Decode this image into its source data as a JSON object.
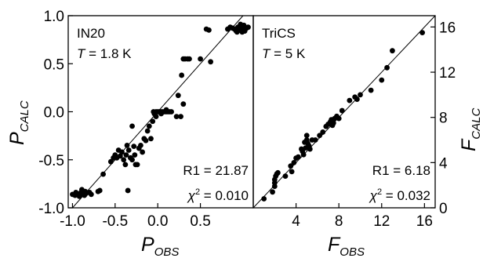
{
  "chart_data": [
    {
      "type": "scatter",
      "panel_label": "IN20",
      "temperature": {
        "symbol": "T",
        "value": " = 1.8 K"
      },
      "fit_stats": {
        "r1": "R1 = 21.87",
        "chi_symbol": "χ",
        "chi_exp": "2",
        "chi_value": " = 0.010"
      },
      "xlabel": {
        "main": "P",
        "sub": "OBS"
      },
      "ylabel": {
        "main": "P",
        "sub": "CALC"
      },
      "xlim": [
        -1.05,
        1.12
      ],
      "ylim": [
        -1.0,
        1.0
      ],
      "xticks": [
        -1.0,
        -0.5,
        0.0,
        0.5
      ],
      "xtick_labels": [
        "-1.0",
        "-0.5",
        "0.0",
        "0.5"
      ],
      "yticks": [
        -1.0,
        -0.5,
        0.0,
        0.5,
        1.0
      ],
      "ytick_labels": [
        "-1.0",
        "-0.5",
        "0.0",
        "0.5",
        "1.0"
      ],
      "reference_line": "y = x",
      "points": [
        [
          -1.0,
          -0.86
        ],
        [
          -0.97,
          -0.87
        ],
        [
          -0.95,
          -0.85
        ],
        [
          -0.93,
          -0.86
        ],
        [
          -0.9,
          -0.84
        ],
        [
          -0.88,
          -0.86
        ],
        [
          -0.86,
          -0.87
        ],
        [
          -0.84,
          -0.85
        ],
        [
          -0.92,
          -0.88
        ],
        [
          -0.96,
          -0.84
        ],
        [
          -0.89,
          -0.81
        ],
        [
          -0.85,
          -0.83
        ],
        [
          -0.8,
          -0.84
        ],
        [
          -0.78,
          -0.86
        ],
        [
          -0.7,
          -0.83
        ],
        [
          -0.68,
          -0.82
        ],
        [
          -0.64,
          -0.65
        ],
        [
          -0.55,
          -0.52
        ],
        [
          -0.52,
          -0.48
        ],
        [
          -0.5,
          -0.45
        ],
        [
          -0.48,
          -0.48
        ],
        [
          -0.46,
          -0.4
        ],
        [
          -0.44,
          -0.46
        ],
        [
          -0.42,
          -0.42
        ],
        [
          -0.4,
          -0.5
        ],
        [
          -0.38,
          -0.55
        ],
        [
          -0.37,
          -0.45
        ],
        [
          -0.36,
          -0.35
        ],
        [
          -0.34,
          -0.4
        ],
        [
          -0.32,
          -0.48
        ],
        [
          -0.3,
          -0.5
        ],
        [
          -0.28,
          -0.36
        ],
        [
          -0.27,
          -0.45
        ],
        [
          -0.26,
          -0.55
        ],
        [
          -0.24,
          -0.55
        ],
        [
          -0.22,
          -0.38
        ],
        [
          -0.2,
          -0.35
        ],
        [
          -0.18,
          -0.42
        ],
        [
          -0.16,
          -0.28
        ],
        [
          -0.14,
          -0.3
        ],
        [
          -0.12,
          -0.2
        ],
        [
          -0.1,
          -0.15
        ],
        [
          -0.08,
          -0.28
        ],
        [
          -0.06,
          -0.1
        ],
        [
          -0.04,
          -0.02
        ],
        [
          -0.02,
          -0.05
        ],
        [
          -0.35,
          -0.82
        ],
        [
          -0.3,
          -0.15
        ],
        [
          -0.05,
          0.0
        ],
        [
          -0.02,
          0.0
        ],
        [
          0.0,
          0.0
        ],
        [
          0.02,
          0.0
        ],
        [
          0.04,
          0.0
        ],
        [
          0.06,
          0.0
        ],
        [
          0.08,
          0.0
        ],
        [
          0.1,
          0.0
        ],
        [
          0.12,
          0.0
        ],
        [
          0.14,
          0.0
        ],
        [
          0.16,
          0.0
        ],
        [
          0.1,
          0.02
        ],
        [
          0.04,
          -0.02
        ],
        [
          0.22,
          -0.05
        ],
        [
          0.27,
          -0.05
        ],
        [
          0.24,
          0.17
        ],
        [
          0.28,
          0.38
        ],
        [
          0.3,
          0.55
        ],
        [
          0.32,
          0.55
        ],
        [
          0.35,
          0.55
        ],
        [
          0.37,
          0.55
        ],
        [
          0.3,
          0.08
        ],
        [
          0.5,
          0.55
        ],
        [
          0.62,
          0.52
        ],
        [
          0.6,
          0.85
        ],
        [
          0.57,
          0.86
        ],
        [
          0.82,
          0.86
        ],
        [
          0.85,
          0.88
        ],
        [
          0.88,
          0.87
        ],
        [
          0.9,
          0.86
        ],
        [
          0.92,
          0.84
        ],
        [
          0.94,
          0.88
        ],
        [
          0.96,
          0.85
        ],
        [
          0.98,
          0.89
        ],
        [
          1.0,
          0.86
        ],
        [
          1.02,
          0.84
        ],
        [
          1.04,
          0.87
        ],
        [
          1.06,
          0.88
        ],
        [
          0.97,
          0.91
        ],
        [
          0.99,
          0.83
        ],
        [
          1.01,
          0.9
        ],
        [
          0.93,
          0.83
        ]
      ]
    },
    {
      "type": "scatter",
      "panel_label": "TriCS",
      "temperature": {
        "symbol": "T",
        "value": " = 5 K"
      },
      "fit_stats": {
        "r1": "R1 = 6.18",
        "chi_symbol": "χ",
        "chi_exp": "2",
        "chi_value": " = 0.032"
      },
      "xlabel": {
        "main": "F",
        "sub": "OBS"
      },
      "ylabel": {
        "main": "F",
        "sub": "CALC"
      },
      "xlim": [
        0,
        17
      ],
      "ylim": [
        0,
        17
      ],
      "xticks": [
        4,
        8,
        12,
        16
      ],
      "xtick_labels": [
        "4",
        "8",
        "12",
        "16"
      ],
      "yticks": [
        0,
        4,
        8,
        12,
        16
      ],
      "ytick_labels": [
        "0",
        "4",
        "8",
        "12",
        "16"
      ],
      "reference_line": "y = x",
      "points": [
        [
          1.0,
          0.8
        ],
        [
          1.8,
          1.4
        ],
        [
          2.0,
          2.5
        ],
        [
          2.1,
          2.8
        ],
        [
          2.0,
          2.2
        ],
        [
          2.2,
          3.0
        ],
        [
          2.0,
          1.9
        ],
        [
          2.3,
          3.1
        ],
        [
          3.0,
          2.8
        ],
        [
          3.5,
          3.7
        ],
        [
          3.8,
          4.0
        ],
        [
          3.6,
          3.2
        ],
        [
          4.0,
          4.4
        ],
        [
          4.2,
          4.5
        ],
        [
          4.5,
          5.2
        ],
        [
          4.6,
          5.0
        ],
        [
          4.7,
          4.7
        ],
        [
          4.8,
          5.8
        ],
        [
          4.9,
          5.3
        ],
        [
          5.0,
          6.0
        ],
        [
          5.1,
          5.7
        ],
        [
          5.2,
          5.5
        ],
        [
          5.0,
          6.4
        ],
        [
          5.3,
          5.2
        ],
        [
          5.5,
          6.0
        ],
        [
          5.8,
          6.0
        ],
        [
          6.2,
          6.4
        ],
        [
          6.5,
          6.7
        ],
        [
          6.8,
          7.2
        ],
        [
          7.0,
          7.4
        ],
        [
          7.2,
          7.6
        ],
        [
          7.3,
          7.8
        ],
        [
          7.5,
          7.5
        ],
        [
          7.8,
          8.1
        ],
        [
          8.0,
          7.9
        ],
        [
          8.3,
          8.6
        ],
        [
          9.0,
          9.5
        ],
        [
          9.5,
          9.8
        ],
        [
          9.7,
          9.6
        ],
        [
          10.0,
          10.0
        ],
        [
          11.0,
          10.4
        ],
        [
          12.0,
          11.3
        ],
        [
          12.5,
          12.4
        ],
        [
          13.0,
          13.9
        ],
        [
          15.8,
          15.5
        ],
        [
          7.4,
          7.3
        ],
        [
          7.6,
          7.9
        ]
      ]
    }
  ]
}
